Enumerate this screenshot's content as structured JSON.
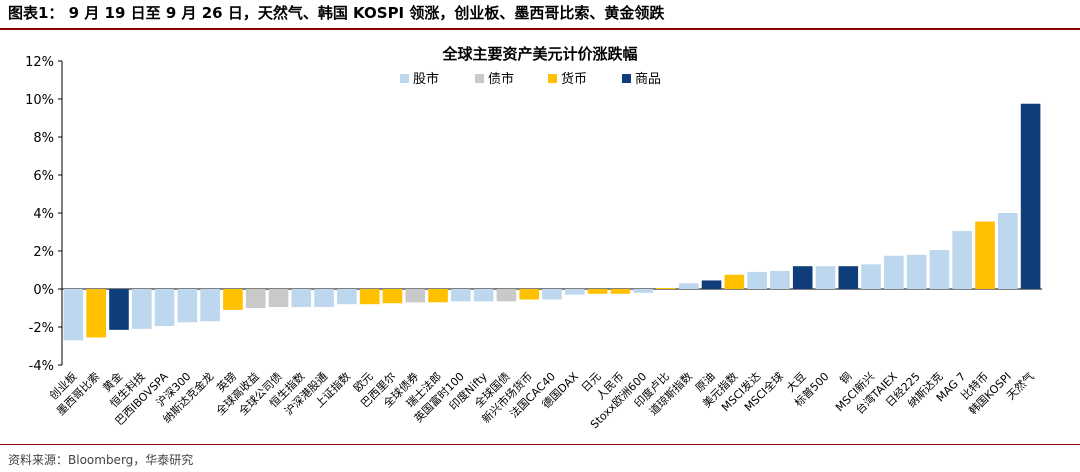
{
  "header": {
    "title": "图表1： 9 月 19 日至 9 月 26 日，天然气、韩国 KOSPI 领涨，创业板、墨西哥比索、黄金领跌"
  },
  "source": "资料来源：Bloomberg，华泰研究",
  "chart_data": {
    "type": "bar",
    "title": "全球主要资产美元计价涨跌幅",
    "ylim": [
      -4,
      12
    ],
    "yticks": [
      -4,
      -2,
      0,
      2,
      4,
      6,
      8,
      10,
      12
    ],
    "ytick_format": "percent",
    "grid": false,
    "legend_position": "top",
    "legend": [
      {
        "name": "股市",
        "color": "#bdd7ee"
      },
      {
        "name": "债市",
        "color": "#c9c9c9"
      },
      {
        "name": "货币",
        "color": "#ffc000"
      },
      {
        "name": "商品",
        "color": "#0e3d7a"
      }
    ],
    "categories": [
      "创业板",
      "墨西哥比索",
      "黄金",
      "恒生科技",
      "巴西IBOVSPA",
      "沪深300",
      "纳斯达克金龙",
      "英镑",
      "全球高收益",
      "全球公司债",
      "恒生指数",
      "沪深港股通",
      "上证指数",
      "欧元",
      "巴西里尔",
      "全球债券",
      "瑞士法郎",
      "英国富时100",
      "印度Nifty",
      "全球国债",
      "新兴市场货币",
      "法国CAC40",
      "德国DAX",
      "日元",
      "人民币",
      "Stoxx欧洲600",
      "印度卢比",
      "道琼斯指数",
      "原油",
      "美元指数",
      "MSCI发达",
      "MSCI全球",
      "大豆",
      "标普500",
      "铜",
      "MSCI新兴",
      "台湾TAIEX",
      "日经225",
      "纳斯达克",
      "MAG 7",
      "比特币",
      "韩国KOSPI",
      "天然气"
    ],
    "values": [
      -2.7,
      -2.55,
      -2.15,
      -2.1,
      -1.95,
      -1.75,
      -1.7,
      -1.1,
      -1.0,
      -0.95,
      -0.95,
      -0.95,
      -0.8,
      -0.8,
      -0.75,
      -0.7,
      -0.7,
      -0.65,
      -0.65,
      -0.65,
      -0.55,
      -0.55,
      -0.3,
      -0.25,
      -0.25,
      -0.2,
      0.05,
      0.3,
      0.45,
      0.75,
      0.9,
      0.95,
      1.2,
      1.2,
      1.2,
      1.3,
      1.75,
      1.8,
      2.05,
      3.05,
      3.55,
      4.0,
      9.75
    ],
    "asset_class": [
      "股市",
      "货币",
      "商品",
      "股市",
      "股市",
      "股市",
      "股市",
      "货币",
      "债市",
      "债市",
      "股市",
      "股市",
      "股市",
      "货币",
      "货币",
      "债市",
      "货币",
      "股市",
      "股市",
      "债市",
      "货币",
      "股市",
      "股市",
      "货币",
      "货币",
      "股市",
      "货币",
      "股市",
      "商品",
      "货币",
      "股市",
      "股市",
      "商品",
      "股市",
      "商品",
      "股市",
      "股市",
      "股市",
      "股市",
      "股市",
      "货币",
      "股市",
      "商品"
    ]
  }
}
